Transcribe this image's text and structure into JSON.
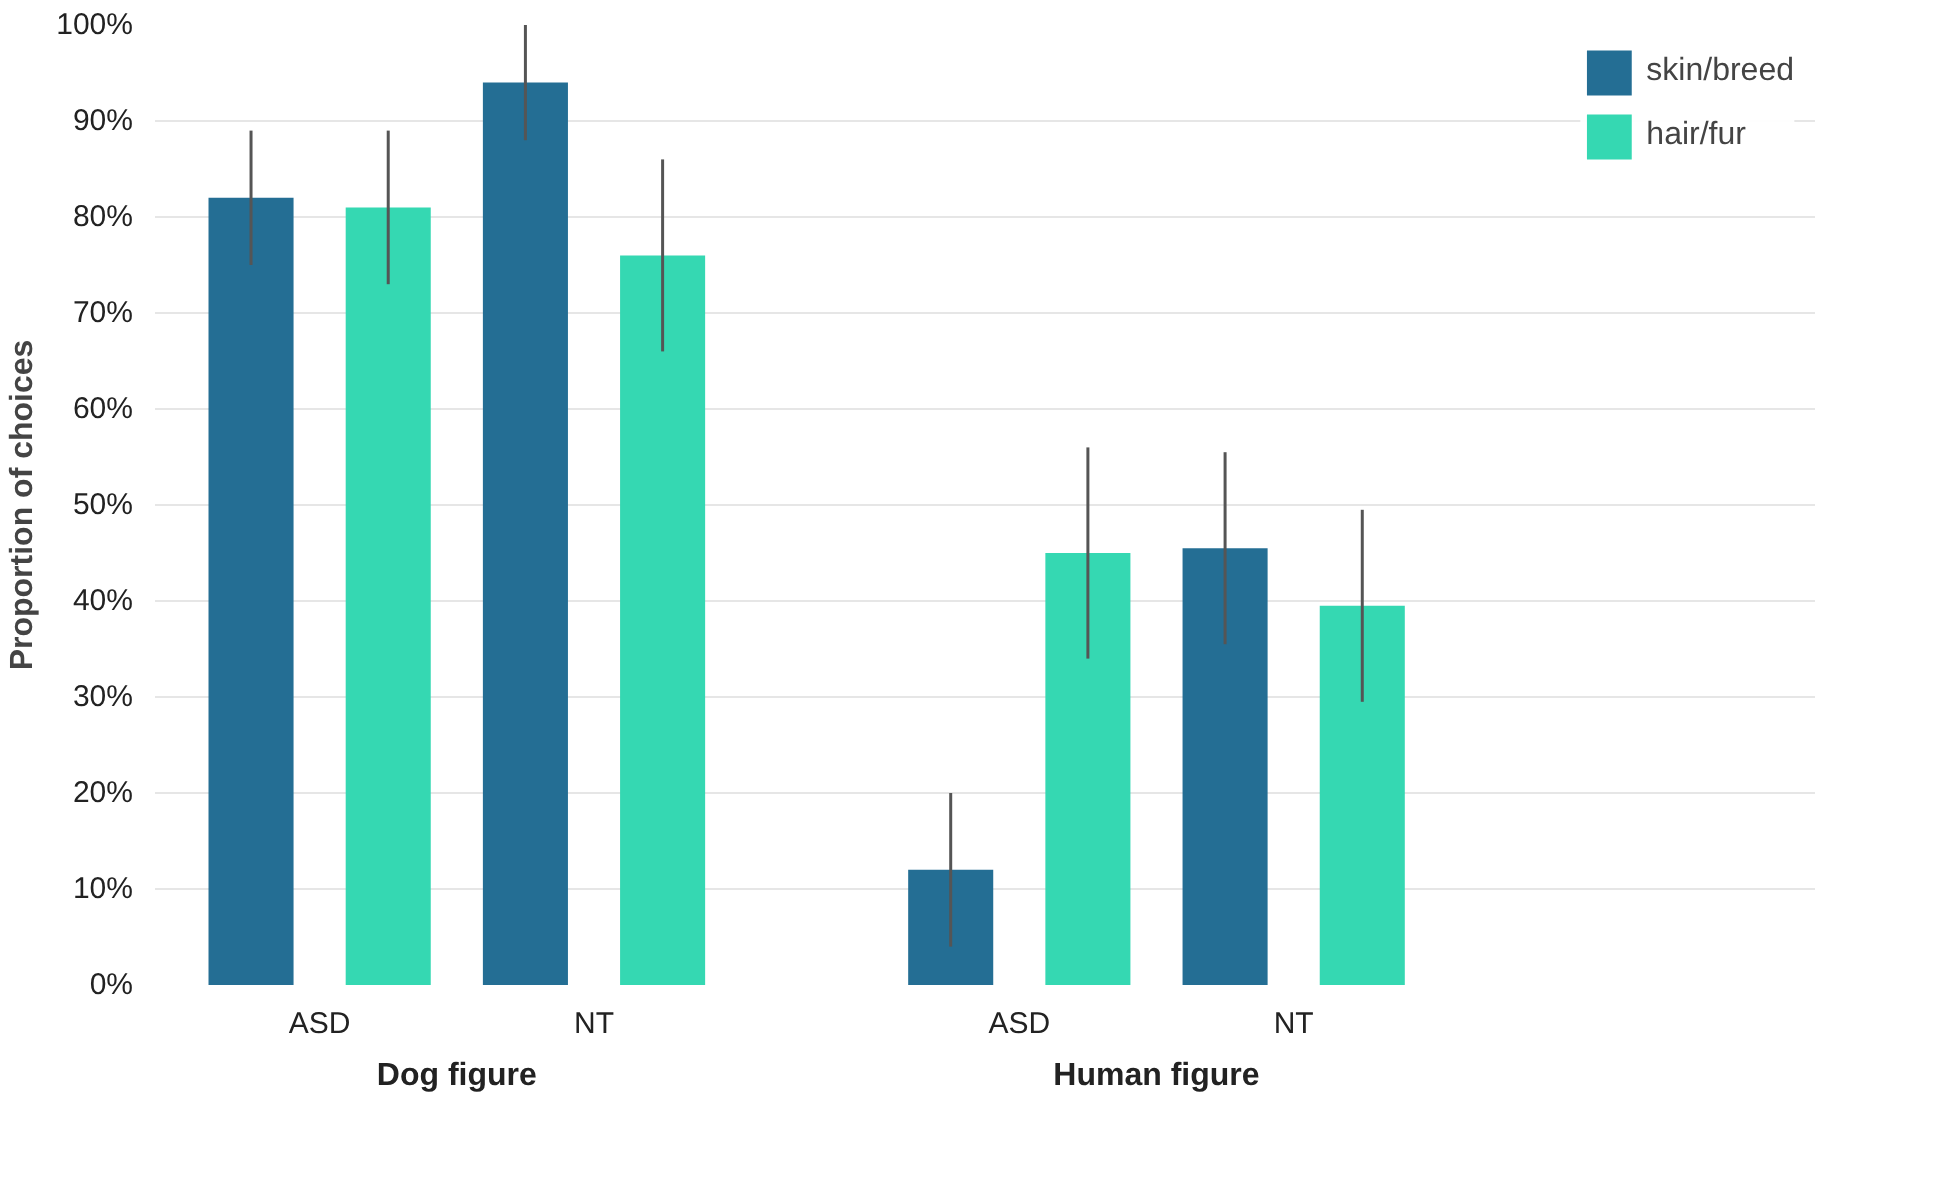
{
  "chart_data": {
    "type": "bar",
    "ylabel": "Proportion of choices",
    "categories": [
      "ASD",
      "NT",
      "ASD",
      "NT"
    ],
    "annotations": [
      "Dog figure",
      "Human figure"
    ],
    "series": [
      {
        "name": "skin/breed",
        "color": "#246e94",
        "values": [
          82,
          94,
          12,
          45.5
        ],
        "errors": [
          [
            75,
            89
          ],
          [
            88,
            100
          ],
          [
            4,
            20
          ],
          [
            35.5,
            55.5
          ]
        ]
      },
      {
        "name": "hair/fur",
        "color": "#35d8b2",
        "values": [
          81,
          76,
          45,
          39.5
        ],
        "errors": [
          [
            73,
            89
          ],
          [
            66,
            86
          ],
          [
            34,
            56
          ],
          [
            29.5,
            49.5
          ]
        ]
      }
    ],
    "ylim": [
      0,
      100
    ],
    "yticks": [
      {
        "value": 0,
        "label": "0%"
      },
      {
        "value": 10,
        "label": "10%"
      },
      {
        "value": 20,
        "label": "20%"
      },
      {
        "value": 30,
        "label": "30%"
      },
      {
        "value": 40,
        "label": "40%"
      },
      {
        "value": 50,
        "label": "50%"
      },
      {
        "value": 60,
        "label": "60%"
      },
      {
        "value": 70,
        "label": "70%"
      },
      {
        "value": 80,
        "label": "80%"
      },
      {
        "value": 90,
        "label": "90%"
      },
      {
        "value": 100,
        "label": "100%"
      }
    ],
    "grid": "y",
    "legend": "top right"
  }
}
